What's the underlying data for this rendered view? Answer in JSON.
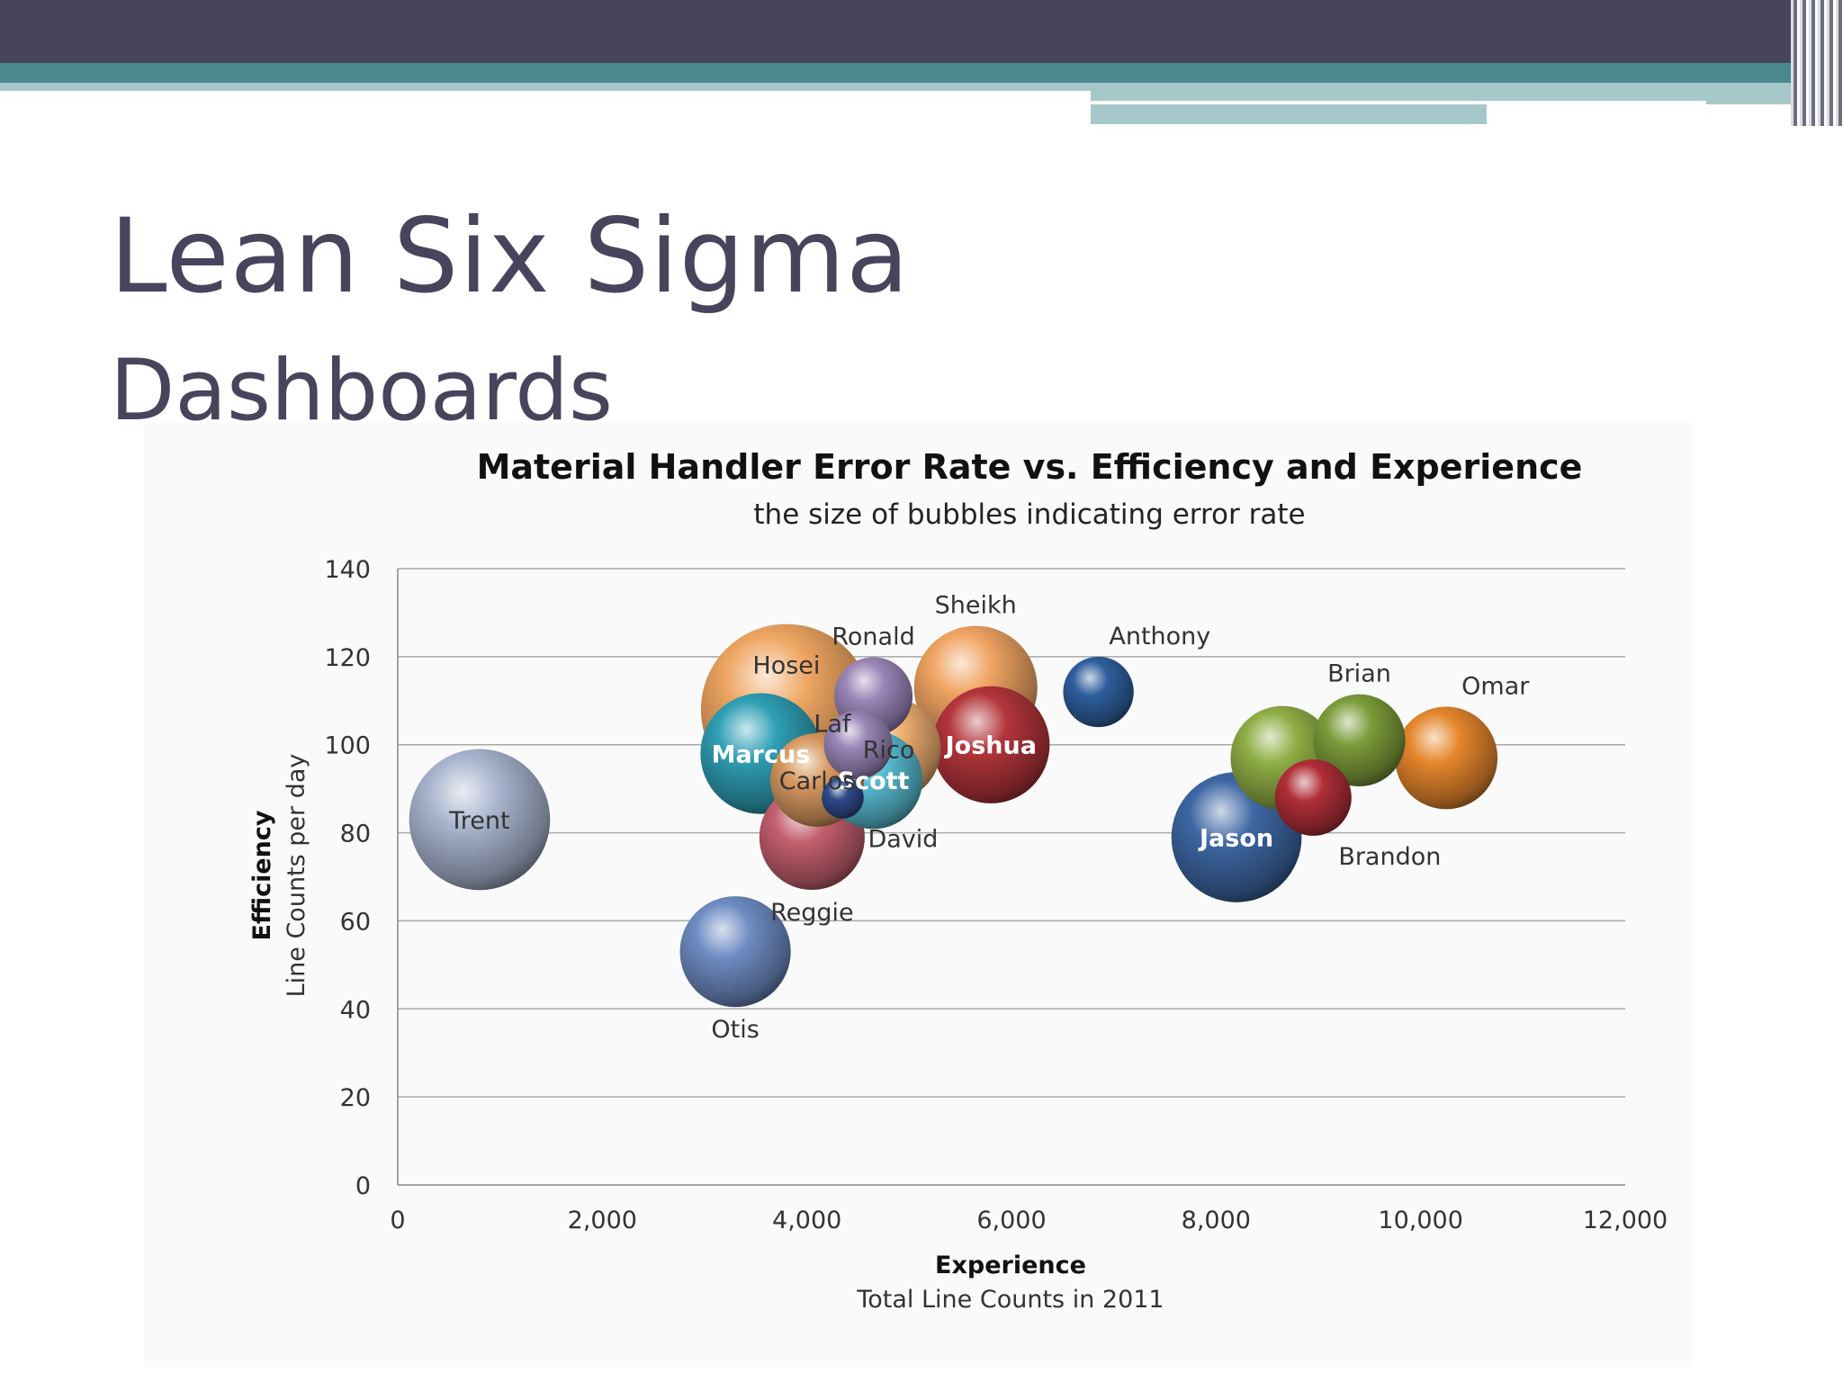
{
  "slide": {
    "title": "Lean Six Sigma",
    "subtitle": "Dashboards"
  },
  "chart_data": {
    "type": "bubble",
    "title": "Material Handler Error Rate vs. Efficiency and Experience",
    "subtitle": "the size of bubbles indicating error rate",
    "xlabel": "Experience",
    "xlabel_sub": "Total Line Counts in 2011",
    "ylabel": "Efficiency",
    "ylabel_sub": "Line Counts per day",
    "xlim": [
      0,
      12000
    ],
    "ylim": [
      0,
      140
    ],
    "x_ticks": [
      "0",
      "2,000",
      "4,000",
      "6,000",
      "8,000",
      "10,000",
      "12,000"
    ],
    "y_ticks": [
      "0",
      "20",
      "40",
      "60",
      "80",
      "100",
      "120",
      "140"
    ],
    "grid": "horizontal",
    "points": [
      {
        "name": "Hosei",
        "x": 3800,
        "y": 108,
        "size": 1.0,
        "color": "#eea561",
        "label_pos": "inside-top"
      },
      {
        "name": "Trent",
        "x": 800,
        "y": 83,
        "size": 0.68,
        "color": "#a9b5cf",
        "label_pos": "inside"
      },
      {
        "name": "Jason",
        "x": 8200,
        "y": 79,
        "size": 0.58,
        "color": "#3e67a3",
        "label_pos": "inside"
      },
      {
        "name": "Sheikh",
        "x": 5650,
        "y": 113,
        "size": 0.52,
        "color": "#f0a462",
        "label_pos": "above"
      },
      {
        "name": "Joshua",
        "x": 5800,
        "y": 100,
        "size": 0.47,
        "color": "#b3353b",
        "label_pos": "inside"
      },
      {
        "name": "Marcus",
        "x": 3550,
        "y": 98,
        "size": 0.5,
        "color": "#2f9fb5",
        "label_pos": "inside"
      },
      {
        "name": "Rico",
        "x": 4800,
        "y": 99,
        "size": 0.37,
        "color": "#f0b071",
        "label_pos": "inside"
      },
      {
        "name": "Scott",
        "x": 4650,
        "y": 92,
        "size": 0.33,
        "color": "#58bcd3",
        "label_pos": "inside"
      },
      {
        "name": "Carlos",
        "x": 4100,
        "y": 92,
        "size": 0.3,
        "color": "#d89960",
        "label_pos": "inside"
      },
      {
        "name": "Laf",
        "x": 4500,
        "y": 100,
        "size": 0.16,
        "color": "#9b86b8",
        "label_pos": "left"
      },
      {
        "name": "Reggie",
        "x": 4050,
        "y": 79,
        "size": 0.38,
        "color": "#c45f6e",
        "label_pos": "below"
      },
      {
        "name": "Otis",
        "x": 3300,
        "y": 53,
        "size": 0.42,
        "color": "#6e8cc3",
        "label_pos": "below"
      },
      {
        "name": "Ronald",
        "x": 4650,
        "y": 111,
        "size": 0.21,
        "color": "#9b86b8",
        "label_pos": "above"
      },
      {
        "name": "David",
        "x": 4350,
        "y": 88,
        "size": 0.06,
        "color": "#2e4a8a",
        "label_pos": "below-right"
      },
      {
        "name": "Anthony",
        "x": 6850,
        "y": 112,
        "size": 0.17,
        "color": "#2e5f9c",
        "label_pos": "above-right"
      },
      {
        "name": "Brian",
        "x": 9400,
        "y": 101,
        "size": 0.29,
        "color": "#7c9c3a",
        "label_pos": "above"
      },
      {
        "name": "",
        "x": 8650,
        "y": 97,
        "size": 0.37,
        "color": "#8fae45",
        "label_pos": "none"
      },
      {
        "name": "Brandon",
        "x": 8950,
        "y": 88,
        "size": 0.2,
        "color": "#b02e37",
        "label_pos": "below-right"
      },
      {
        "name": "Omar",
        "x": 10250,
        "y": 97,
        "size": 0.36,
        "color": "#e5862c",
        "label_pos": "above-right"
      }
    ]
  }
}
